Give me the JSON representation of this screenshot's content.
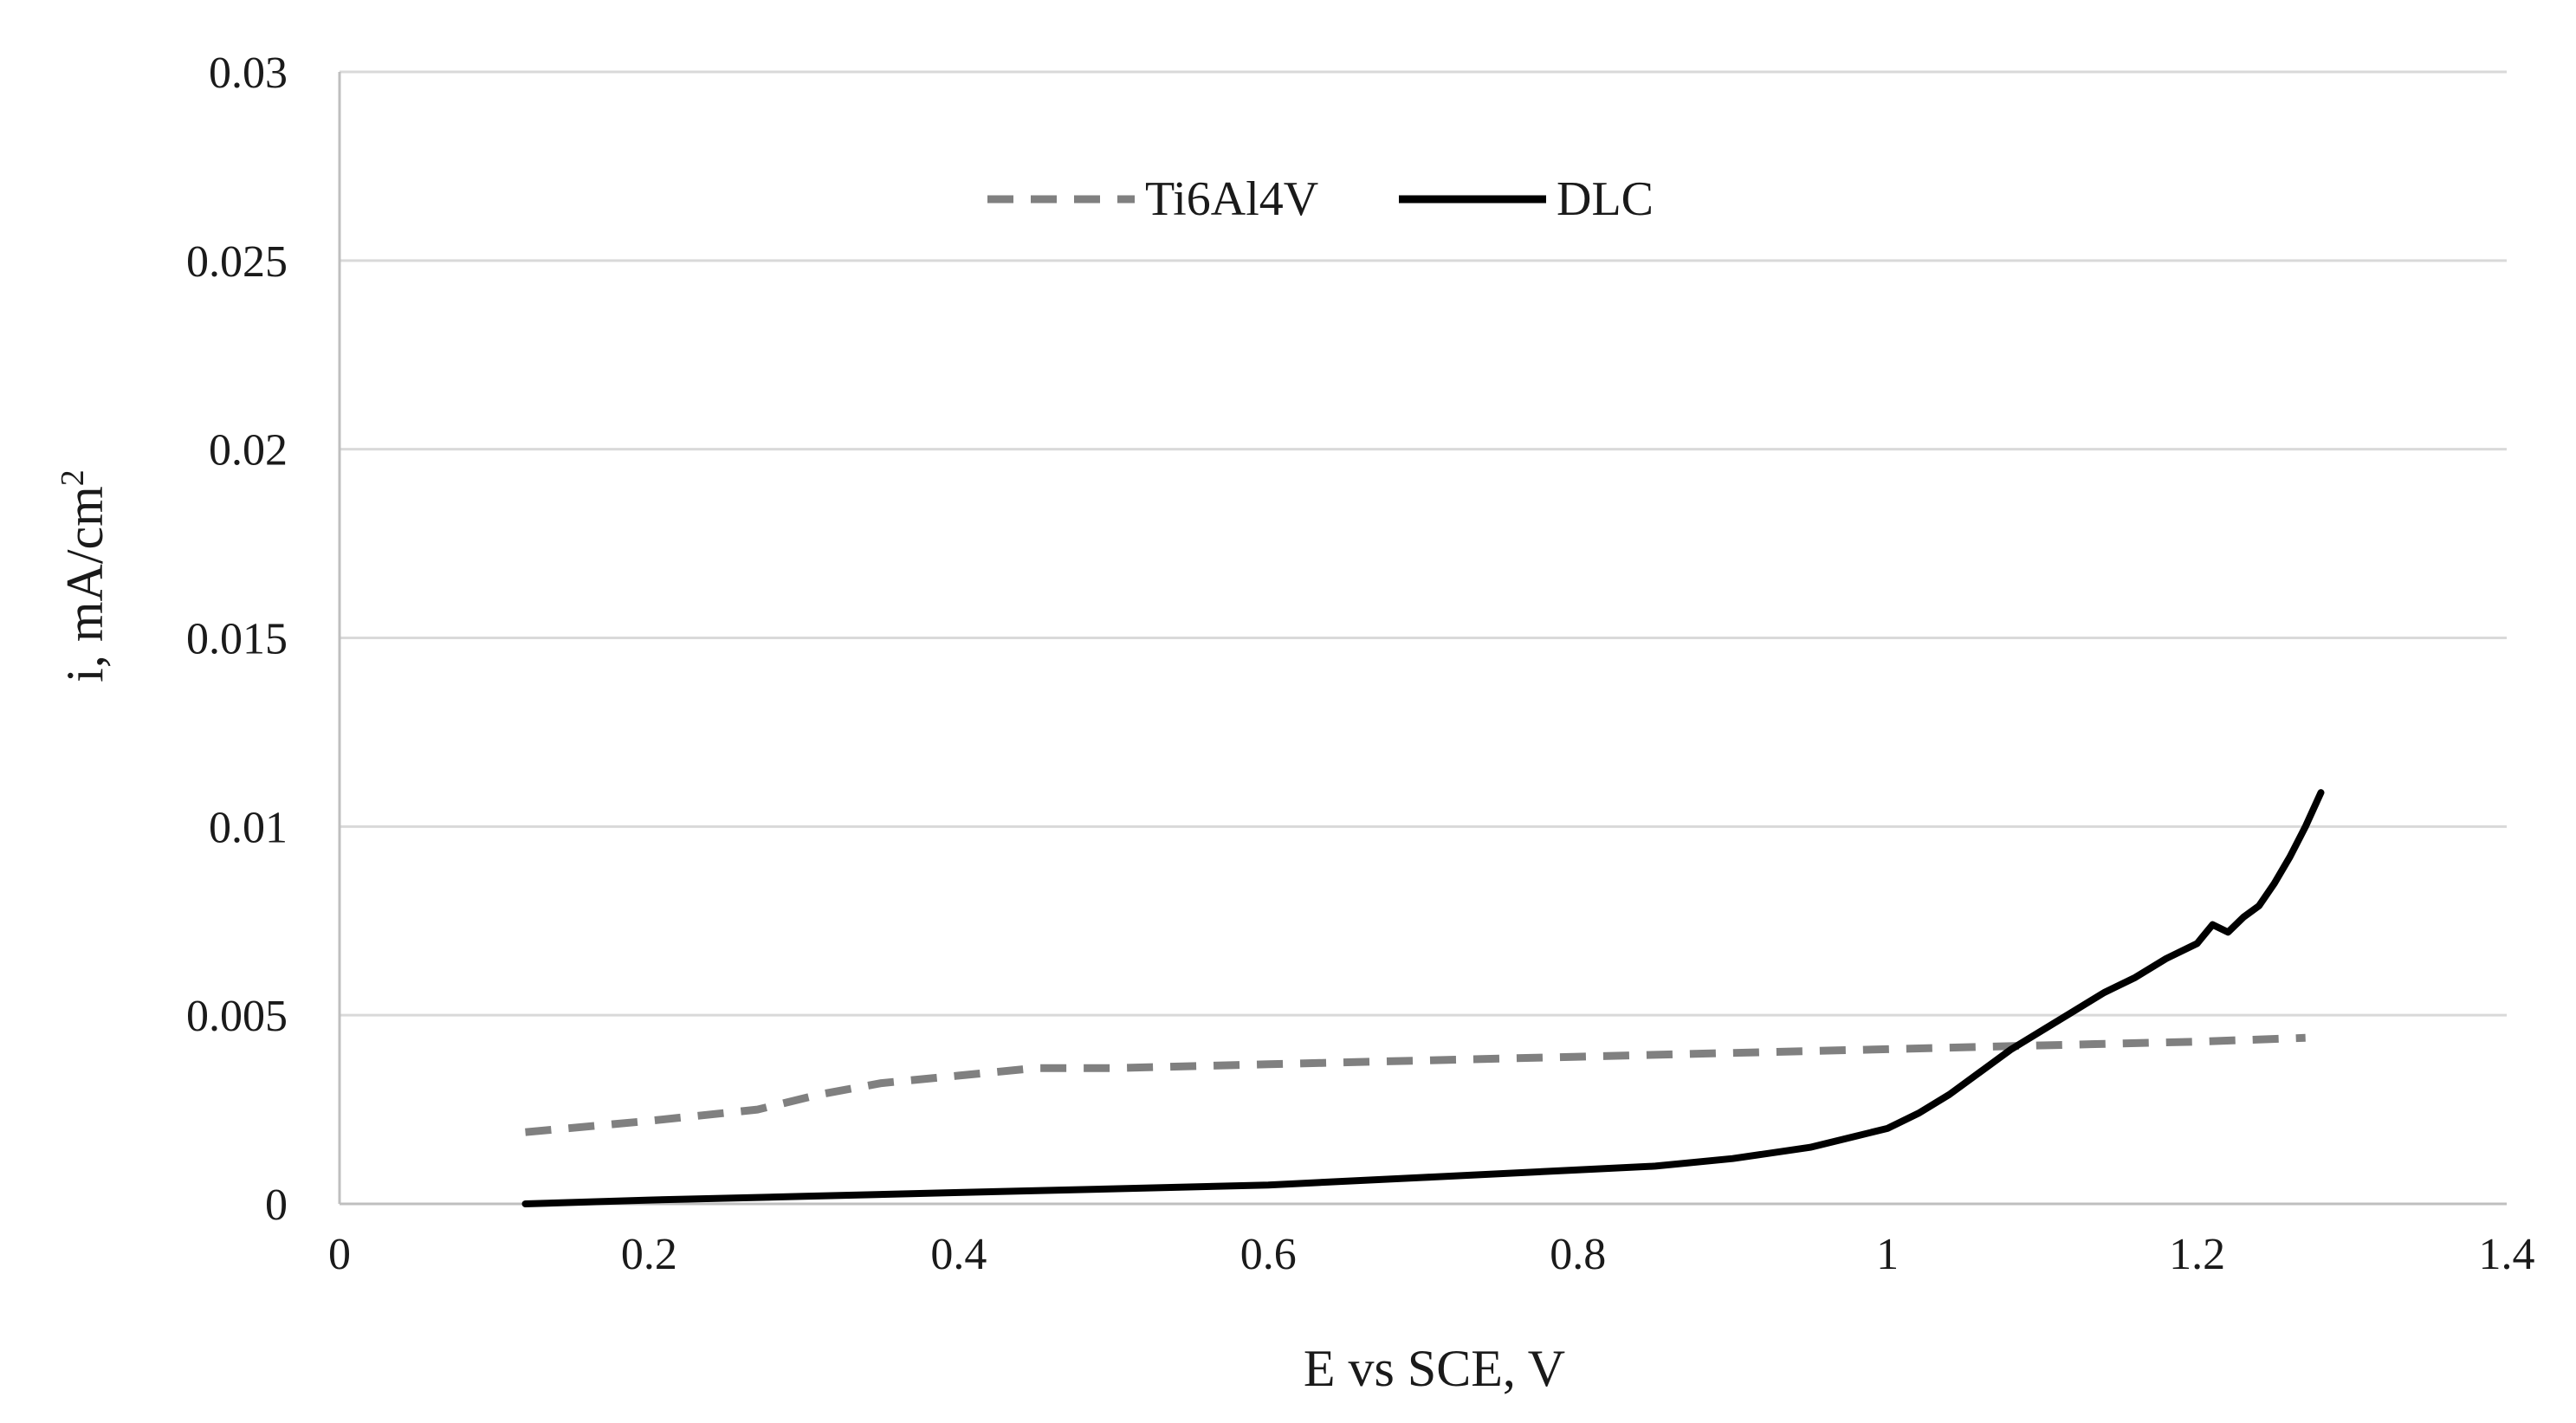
{
  "chart_data": {
    "type": "line",
    "title": "",
    "xlabel": "E vs SCE, V",
    "ylabel": "i, mA/cm",
    "ylabel_superscript": "2",
    "xlim": [
      0,
      1.4
    ],
    "ylim": [
      0,
      0.03
    ],
    "xticks": [
      0,
      0.2,
      0.4,
      0.6,
      0.8,
      1,
      1.2,
      1.4
    ],
    "xtick_labels": [
      "0",
      "0.2",
      "0.4",
      "0.6",
      "0.8",
      "1",
      "1.2",
      "1.4"
    ],
    "yticks": [
      0,
      0.005,
      0.01,
      0.015,
      0.02,
      0.025,
      0.03
    ],
    "ytick_labels": [
      "0",
      "0.005",
      "0.01",
      "0.015",
      "0.02",
      "0.025",
      "0.03"
    ],
    "grid": true,
    "legend_position": "top-center",
    "series": [
      {
        "name": "Ti6Al4V",
        "color": "#808080",
        "style": "dashed",
        "x": [
          0.12,
          0.2,
          0.27,
          0.31,
          0.35,
          0.4,
          0.45,
          0.5,
          0.6,
          0.7,
          0.8,
          0.9,
          1.0,
          1.1,
          1.2,
          1.27
        ],
        "y": [
          0.0019,
          0.0022,
          0.0025,
          0.0029,
          0.0032,
          0.0034,
          0.0036,
          0.0036,
          0.0037,
          0.0038,
          0.0039,
          0.004,
          0.0041,
          0.0042,
          0.0043,
          0.0044
        ]
      },
      {
        "name": "DLC",
        "color": "#000000",
        "style": "solid",
        "x": [
          0.12,
          0.2,
          0.3,
          0.4,
          0.5,
          0.6,
          0.7,
          0.8,
          0.85,
          0.9,
          0.95,
          0.98,
          1.0,
          1.02,
          1.04,
          1.06,
          1.08,
          1.1,
          1.12,
          1.14,
          1.16,
          1.18,
          1.2,
          1.21,
          1.22,
          1.23,
          1.24,
          1.25,
          1.26,
          1.27,
          1.28
        ],
        "y": [
          0.0,
          0.0001,
          0.0002,
          0.0003,
          0.0004,
          0.0005,
          0.0007,
          0.0009,
          0.001,
          0.0012,
          0.0015,
          0.0018,
          0.002,
          0.0024,
          0.0029,
          0.0035,
          0.0041,
          0.0046,
          0.0051,
          0.0056,
          0.006,
          0.0065,
          0.0069,
          0.0074,
          0.0072,
          0.0076,
          0.0079,
          0.0085,
          0.0092,
          0.01,
          0.0109
        ]
      }
    ]
  }
}
